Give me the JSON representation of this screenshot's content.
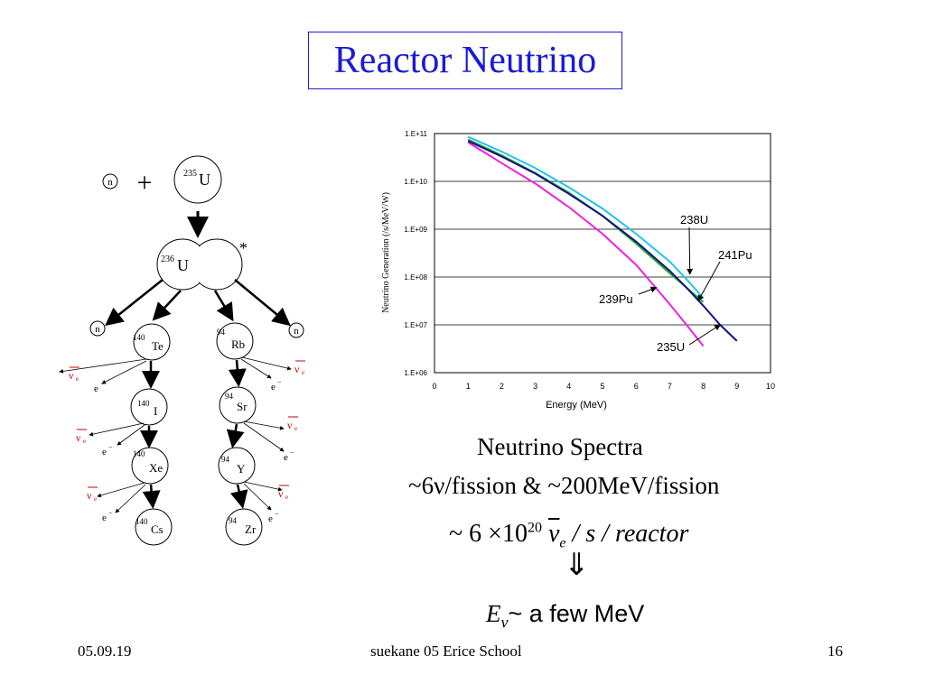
{
  "title": "Reactor Neutrino",
  "decay_chain": {
    "neutron": "n",
    "plus": "+",
    "u235": {
      "mass": "235",
      "symbol": "U"
    },
    "u236": {
      "mass": "236",
      "symbol": "U"
    },
    "excited_mark": "*",
    "left_chain": [
      {
        "mass": "140",
        "symbol": "Te"
      },
      {
        "mass": "140",
        "symbol": "I"
      },
      {
        "mass": "140",
        "symbol": "Xe"
      },
      {
        "mass": "140",
        "symbol": "Cs"
      }
    ],
    "right_chain": [
      {
        "mass": "94",
        "symbol": "Rb"
      },
      {
        "mass": "94",
        "symbol": "Sr"
      },
      {
        "mass": "94",
        "symbol": "Y"
      },
      {
        "mass": "94",
        "symbol": "Zr"
      }
    ],
    "antineutrino_label": "ν",
    "antineutrino_sub": "e",
    "electron_label": "e",
    "electron_sup": "−",
    "accent_color": "#cc0000"
  },
  "chart_data": {
    "type": "line",
    "title": "",
    "xlabel": "Energy (MeV)",
    "ylabel": "Neutrino Generation (/s/MeV/W)",
    "xlim": [
      0,
      10
    ],
    "ylim": [
      1000000.0,
      100000000000.0
    ],
    "yscale": "log",
    "x_ticks": [
      "0",
      "1",
      "2",
      "3",
      "4",
      "5",
      "6",
      "7",
      "8",
      "9",
      "10"
    ],
    "y_ticks": [
      "1.E+06",
      "1.E+07",
      "1.E+08",
      "1.E+09",
      "1.E+10",
      "1.E+11"
    ],
    "grid": "horizontal",
    "series": [
      {
        "name": "238U",
        "color": "#22c4e8",
        "x": [
          1,
          1.5,
          2,
          3,
          4,
          5,
          6,
          7,
          7.5,
          8
        ],
        "y": [
          85000000000.0,
          60000000000.0,
          42000000000.0,
          19000000000.0,
          7500000000.0,
          2700000000.0,
          800000000.0,
          210000000.0,
          90000000.0,
          36000000.0
        ]
      },
      {
        "name": "241Pu",
        "color": "#22aa22",
        "x": [
          1,
          2,
          3,
          4,
          5,
          6,
          7,
          7.5,
          8
        ],
        "y": [
          75000000000.0,
          35000000000.0,
          15000000000.0,
          5800000000.0,
          1900000000.0,
          500000000.0,
          120000000.0,
          60000000.0,
          30000000.0
        ]
      },
      {
        "name": "239Pu",
        "color": "#ee22dd",
        "x": [
          1,
          1.5,
          2,
          3,
          4,
          5,
          6,
          6.5,
          7,
          7.5,
          8
        ],
        "y": [
          65000000000.0,
          40000000000.0,
          24000000000.0,
          9000000000.0,
          2900000000.0,
          800000000.0,
          180000000.0,
          70000000.0,
          27000000.0,
          10000000.0,
          3600000.0
        ]
      },
      {
        "name": "235U",
        "color": "#111188",
        "x": [
          1,
          2,
          3,
          4,
          5,
          6,
          7,
          7.5,
          8,
          8.5,
          9
        ],
        "y": [
          70000000000.0,
          33000000000.0,
          14500000000.0,
          5500000000.0,
          1900000000.0,
          550000000.0,
          135000000.0,
          60000000.0,
          25000000.0,
          10000000.0,
          4600000.0
        ]
      }
    ],
    "annotations": [
      {
        "text": "238U",
        "color": "#000000"
      },
      {
        "text": "241Pu",
        "color": "#000000"
      },
      {
        "text": "239Pu",
        "color": "#000000"
      },
      {
        "text": "235U",
        "color": "#000000"
      }
    ]
  },
  "captions": {
    "spectra_title": "Neutrino Spectra",
    "fission_line": "~6ν/fission & ~200MeV/fission",
    "rate_prefix": "~ 6 ×10",
    "rate_exp": "20",
    "rate_nu": "ν",
    "rate_nu_sub": "e",
    "rate_suffix": " / s / reactor",
    "arrow": "⇓",
    "energy_E": "E",
    "energy_sub": "ν",
    "energy_rest": "~ a few MeV"
  },
  "footer": {
    "date": "05.09.19",
    "center": "suekane 05 Erice School",
    "page": "16"
  }
}
